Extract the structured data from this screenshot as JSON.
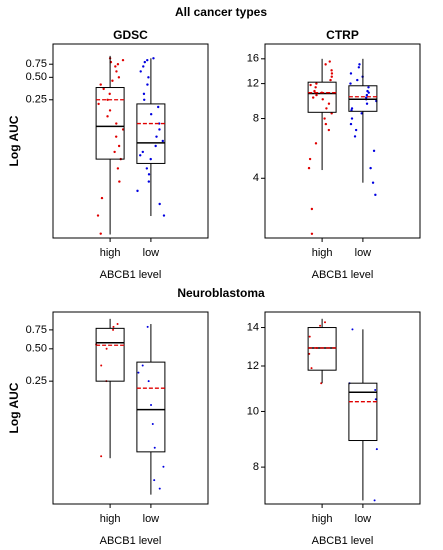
{
  "sections": [
    "All cancer types",
    "Neuroblastoma"
  ],
  "chart_data": [
    {
      "type": "box",
      "title": "GDSC",
      "ylabel": "Log AUC",
      "xlabel": "ABCB1 level",
      "log_scale": true,
      "categories": [
        "high",
        "low"
      ],
      "colors": [
        "#e00000",
        "#0000e0"
      ],
      "ylim": [
        0.0035,
        1.4
      ],
      "yticks": [
        0.25,
        {
          "value": 0.5,
          "label": "0.50"
        },
        0.75
      ],
      "boxes": [
        {
          "min": 0.0039,
          "q1": 0.04,
          "median": 0.11,
          "q3": 0.365,
          "max": 0.97,
          "mean": 0.25
        },
        {
          "min": 0.0069,
          "q1": 0.035,
          "median": 0.066,
          "q3": 0.22,
          "max": 0.9,
          "mean": 0.12
        }
      ],
      "points": [
        [
          0.9,
          0.85,
          0.8,
          0.75,
          0.7,
          0.6,
          0.5,
          0.45,
          0.4,
          0.35,
          0.3,
          0.25,
          0.22,
          0.18,
          0.15,
          0.12,
          0.1,
          0.08,
          0.06,
          0.05,
          0.04,
          0.03,
          0.02,
          0.012,
          0.007,
          0.004
        ],
        [
          0.9,
          0.85,
          0.8,
          0.7,
          0.6,
          0.5,
          0.4,
          0.3,
          0.25,
          0.2,
          0.16,
          0.12,
          0.1,
          0.08,
          0.07,
          0.06,
          0.05,
          0.045,
          0.04,
          0.03,
          0.025,
          0.02,
          0.015,
          0.01,
          0.007
        ]
      ]
    },
    {
      "type": "box",
      "title": "CTRP",
      "xlabel": "ABCB1 level",
      "log_scale": true,
      "categories": [
        "high",
        "low"
      ],
      "colors": [
        "#e00000",
        "#0000e0"
      ],
      "ylim": [
        2,
        19
      ],
      "yticks": [
        4,
        8,
        12,
        16
      ],
      "boxes": [
        {
          "min": 4.4,
          "q1": 8.6,
          "median": 10.7,
          "q3": 12.2,
          "max": 16,
          "mean": 10.8
        },
        {
          "min": 3.8,
          "q1": 8.7,
          "median": 10.0,
          "q3": 11.7,
          "max": 16,
          "mean": 10.3
        }
      ],
      "points": [
        [
          15.5,
          15,
          14,
          13.5,
          13,
          12.5,
          12,
          11.8,
          11.5,
          11,
          10.8,
          10.5,
          10.2,
          10,
          9.5,
          9,
          8.5,
          8,
          7.5,
          7,
          6,
          5,
          4.5,
          2.8,
          2.1
        ],
        [
          15,
          14.5,
          13.5,
          13,
          12.5,
          12,
          11.5,
          11,
          10.8,
          10.5,
          10.2,
          10,
          9.8,
          9.5,
          9,
          8.8,
          8.5,
          8,
          7.5,
          7,
          6.5,
          5.5,
          4.5,
          3.8,
          3.3
        ]
      ]
    },
    {
      "type": "box",
      "ylabel": "Log AUC",
      "xlabel": "ABCB1 level",
      "log_scale": true,
      "categories": [
        "high",
        "low"
      ],
      "colors": [
        "#e00000",
        "#0000e0"
      ],
      "ylim": [
        0.018,
        1.1
      ],
      "yticks": [
        0.25,
        {
          "value": 0.5,
          "label": "0.50"
        },
        0.75
      ],
      "boxes": [
        {
          "min": 0.048,
          "q1": 0.25,
          "median": 0.57,
          "q3": 0.775,
          "max": 0.95,
          "mean": 0.54
        },
        {
          "min": 0.022,
          "q1": 0.055,
          "median": 0.136,
          "q3": 0.376,
          "max": 0.85,
          "mean": 0.215
        }
      ],
      "points": [
        [
          0.85,
          0.8,
          0.75,
          0.55,
          0.5,
          0.35,
          0.25,
          0.05
        ],
        [
          0.8,
          0.35,
          0.3,
          0.25,
          0.15,
          0.1,
          0.06,
          0.04,
          0.03,
          0.025
        ]
      ]
    },
    {
      "type": "box",
      "xlabel": "ABCB1 level",
      "log_scale": true,
      "categories": [
        "high",
        "low"
      ],
      "colors": [
        "#e00000",
        "#0000e0"
      ],
      "ylim": [
        6.9,
        14.9
      ],
      "yticks": [
        8,
        10,
        12,
        14
      ],
      "boxes": [
        {
          "min": 11.2,
          "q1": 11.8,
          "median": 12.9,
          "q3": 14,
          "max": 14.5,
          "mean": 12.9
        },
        {
          "min": 7.0,
          "q1": 8.9,
          "median": 10.8,
          "q3": 11.2,
          "max": 13.9,
          "mean": 10.4
        }
      ],
      "points": [
        [
          14.3,
          14.1,
          13.5,
          12.9,
          12.6,
          11.9,
          11.2
        ],
        [
          13.9,
          11.2,
          10.9,
          10.5,
          8.6,
          7.0
        ]
      ]
    }
  ]
}
